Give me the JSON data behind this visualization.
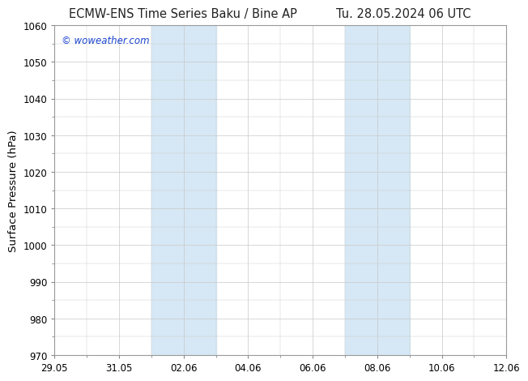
{
  "title_left": "ECMW-ENS Time Series Baku / Bine AP",
  "title_right": "Tu. 28.05.2024 06 UTC",
  "ylabel": "Surface Pressure (hPa)",
  "ylim": [
    970,
    1060
  ],
  "yticks": [
    970,
    980,
    990,
    1000,
    1010,
    1020,
    1030,
    1040,
    1050,
    1060
  ],
  "x_start": 0,
  "x_end": 14,
  "xtick_labels": [
    "29.05",
    "31.05",
    "02.06",
    "04.06",
    "06.06",
    "08.06",
    "10.06",
    "12.06"
  ],
  "xtick_positions": [
    0,
    2,
    4,
    6,
    8,
    10,
    12,
    14
  ],
  "shaded_bands": [
    {
      "x_start": 3,
      "x_end": 5
    },
    {
      "x_start": 9,
      "x_end": 11
    }
  ],
  "shade_color": "#d6e8f5",
  "background_color": "#ffffff",
  "grid_color": "#c8c8c8",
  "watermark_text": "© woweather.com",
  "watermark_color": "#1a44cc",
  "title_fontsize": 10.5,
  "axis_label_fontsize": 9.5,
  "tick_fontsize": 8.5,
  "watermark_fontsize": 8.5
}
